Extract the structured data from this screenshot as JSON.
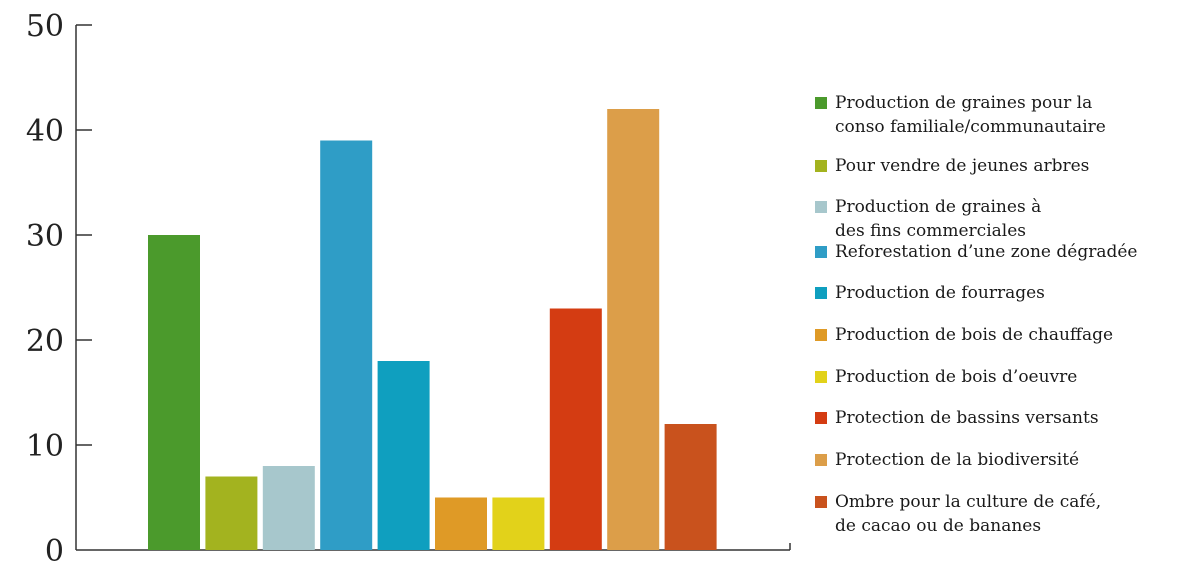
{
  "chart_data": {
    "type": "bar",
    "ylim": [
      0,
      50
    ],
    "yticks": [
      0,
      10,
      20,
      30,
      40,
      50
    ],
    "series": [
      {
        "name": "Production de graines pour la conso familiale/communautaire",
        "label_lines": [
          "Production de graines pour la",
          "conso familiale/communautaire"
        ],
        "value": 30,
        "color": "#4b9a2c"
      },
      {
        "name": "Pour vendre de jeunes arbres",
        "label_lines": [
          "Pour vendre de jeunes arbres"
        ],
        "value": 7,
        "color": "#a3b31f"
      },
      {
        "name": "Production de graines à des fins commerciales",
        "label_lines": [
          "Production de graines à",
          "des fins commerciales"
        ],
        "value": 8,
        "color": "#a7c7cc"
      },
      {
        "name": "Reforestation d’une zone dégradée",
        "label_lines": [
          "Reforestation d’une zone dégradée"
        ],
        "value": 39,
        "color": "#2f9dc6"
      },
      {
        "name": "Production de fourrages",
        "label_lines": [
          "Production de fourrages"
        ],
        "value": 18,
        "color": "#0f9fbf"
      },
      {
        "name": "Production de bois de chauffage",
        "label_lines": [
          "Production de bois de chauffage"
        ],
        "value": 5,
        "color": "#df9a26"
      },
      {
        "name": "Production de bois d’oeuvre",
        "label_lines": [
          "Production de bois d’oeuvre"
        ],
        "value": 5,
        "color": "#e2d21a"
      },
      {
        "name": "Protection de bassins versants",
        "label_lines": [
          "Protection de bassins versants"
        ],
        "value": 23,
        "color": "#d43c12"
      },
      {
        "name": "Protection de la biodiversité",
        "label_lines": [
          "Protection de la biodiversité"
        ],
        "value": 42,
        "color": "#dc9e49"
      },
      {
        "name": "Ombre pour la culture de café, de cacao ou de bananes",
        "label_lines": [
          "Ombre pour la culture de café,",
          "de cacao ou de bananes"
        ],
        "value": 12,
        "color": "#c9521d"
      }
    ],
    "grid": false,
    "legend_position": "right"
  }
}
